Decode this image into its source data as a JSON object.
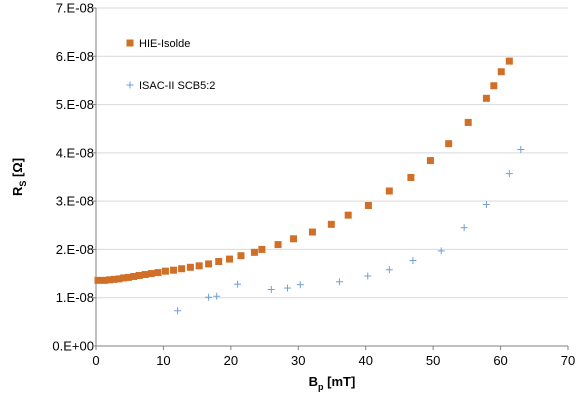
{
  "chart_data": {
    "type": "scatter",
    "title": "",
    "xlabel": {
      "main": "B",
      "sub": "p",
      "unit": " [mT]"
    },
    "ylabel": {
      "main": "R",
      "sub": "S",
      "unit": " [Ω]"
    },
    "xlim": [
      0,
      70
    ],
    "ylim": [
      0,
      7e-08
    ],
    "x_ticks": [
      0,
      10,
      20,
      30,
      40,
      50,
      60,
      70
    ],
    "x_tick_labels": [
      "0",
      "10",
      "20",
      "30",
      "40",
      "50",
      "60",
      "70"
    ],
    "y_ticks": [
      0,
      1e-08,
      2e-08,
      3e-08,
      4e-08,
      5e-08,
      6e-08,
      7e-08
    ],
    "y_tick_labels": [
      "0.E+00",
      "1.E-08",
      "2.E-08",
      "3.E-08",
      "4.E-08",
      "5.E-08",
      "6.E-08",
      "7.E-08"
    ],
    "grid": "horizontal",
    "legend_position": "top-left",
    "series": [
      {
        "name": "HIE-Isolde",
        "marker": "square",
        "color": "#d06f28",
        "points": [
          [
            0.3,
            1.36e-08
          ],
          [
            1.3,
            1.36e-08
          ],
          [
            2.0,
            1.37e-08
          ],
          [
            2.7,
            1.38e-08
          ],
          [
            3.4,
            1.39e-08
          ],
          [
            4.1,
            1.41e-08
          ],
          [
            4.8,
            1.42e-08
          ],
          [
            5.6,
            1.44e-08
          ],
          [
            6.4,
            1.46e-08
          ],
          [
            7.3,
            1.48e-08
          ],
          [
            8.2,
            1.5e-08
          ],
          [
            9.2,
            1.52e-08
          ],
          [
            10.3,
            1.55e-08
          ],
          [
            11.5,
            1.57e-08
          ],
          [
            12.7,
            1.6e-08
          ],
          [
            14.0,
            1.63e-08
          ],
          [
            15.3,
            1.66e-08
          ],
          [
            16.7,
            1.7e-08
          ],
          [
            18.2,
            1.75e-08
          ],
          [
            19.8,
            1.8e-08
          ],
          [
            21.5,
            1.87e-08
          ],
          [
            23.5,
            1.94e-08
          ],
          [
            24.6,
            2e-08
          ],
          [
            27.0,
            2.1e-08
          ],
          [
            29.3,
            2.22e-08
          ],
          [
            32.1,
            2.36e-08
          ],
          [
            34.9,
            2.52e-08
          ],
          [
            37.4,
            2.71e-08
          ],
          [
            40.4,
            2.91e-08
          ],
          [
            43.5,
            3.21e-08
          ],
          [
            46.7,
            3.49e-08
          ],
          [
            49.6,
            3.84e-08
          ],
          [
            52.3,
            4.19e-08
          ],
          [
            55.2,
            4.63e-08
          ],
          [
            57.9,
            5.13e-08
          ],
          [
            59.0,
            5.39e-08
          ],
          [
            60.1,
            5.68e-08
          ],
          [
            61.3,
            5.9e-08
          ]
        ]
      },
      {
        "name": "ISAC-II SCB5:2",
        "marker": "plus",
        "color": "#6f9fd8",
        "points": [
          [
            12.1,
            7.3e-09
          ],
          [
            16.7,
            1.01e-08
          ],
          [
            17.9,
            1.03e-08
          ],
          [
            21.0,
            1.28e-08
          ],
          [
            26.0,
            1.17e-08
          ],
          [
            28.4,
            1.2e-08
          ],
          [
            30.3,
            1.27e-08
          ],
          [
            36.1,
            1.33e-08
          ],
          [
            40.3,
            1.45e-08
          ],
          [
            43.5,
            1.58e-08
          ],
          [
            47.0,
            1.77e-08
          ],
          [
            51.2,
            1.97e-08
          ],
          [
            54.6,
            2.45e-08
          ],
          [
            57.9,
            2.93e-08
          ],
          [
            61.3,
            3.57e-08
          ],
          [
            63.0,
            4.07e-08
          ]
        ]
      }
    ]
  }
}
